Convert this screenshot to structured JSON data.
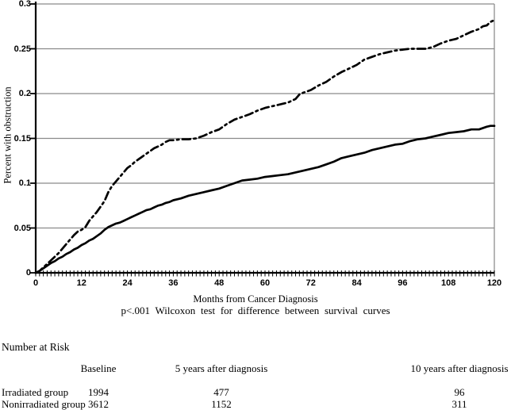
{
  "figure": {
    "ylabel": "Percent with obstruction",
    "xlabel": "Months from Cancer Diagnosis",
    "footnote": "p<.001 Wilcoxon test for difference between survival curves"
  },
  "chart_data": {
    "type": "line",
    "title": "",
    "xlabel": "Months from Cancer Diagnosis",
    "ylabel": "Percent with obstruction",
    "annotation": "p<.001 Wilcoxon test for difference between survival curves",
    "xlim": [
      0,
      120
    ],
    "ylim": [
      0,
      0.3
    ],
    "grid": true,
    "legend": "none",
    "x_ticks": [
      0,
      12,
      24,
      36,
      48,
      60,
      72,
      84,
      96,
      108,
      120
    ],
    "minor_x_tick_every_months": 1,
    "y_ticks": [
      0,
      0.05,
      0.1,
      0.15,
      0.2,
      0.25,
      0.3
    ],
    "y_tick_labels": [
      "0",
      "0.05",
      "0.1",
      "0.15",
      "0.2",
      "0.25",
      "0.3"
    ],
    "series": [
      {
        "name": "Irradiated group",
        "style": "dash-dot",
        "color": "#000000",
        "x": [
          0,
          1,
          2,
          3,
          4,
          5,
          6,
          7,
          8,
          9,
          10,
          11,
          12,
          13,
          14,
          15,
          16,
          17,
          18,
          19,
          20,
          21,
          22,
          23,
          24,
          25,
          26,
          27,
          28,
          29,
          30,
          31,
          32,
          33,
          34,
          35,
          36,
          38,
          40,
          42,
          44,
          46,
          48,
          50,
          52,
          54,
          56,
          58,
          60,
          62,
          64,
          66,
          68,
          69,
          70,
          72,
          74,
          76,
          78,
          80,
          82,
          84,
          86,
          88,
          90,
          92,
          94,
          96,
          98,
          100,
          102,
          104,
          106,
          108,
          110,
          112,
          114,
          116,
          117,
          118,
          119,
          120
        ],
        "y": [
          0,
          0.002,
          0.006,
          0.01,
          0.014,
          0.018,
          0.022,
          0.027,
          0.032,
          0.037,
          0.042,
          0.046,
          0.048,
          0.051,
          0.058,
          0.063,
          0.068,
          0.074,
          0.08,
          0.09,
          0.097,
          0.102,
          0.107,
          0.112,
          0.117,
          0.12,
          0.124,
          0.127,
          0.13,
          0.133,
          0.136,
          0.139,
          0.141,
          0.143,
          0.146,
          0.148,
          0.148,
          0.149,
          0.149,
          0.15,
          0.153,
          0.157,
          0.16,
          0.166,
          0.171,
          0.174,
          0.177,
          0.181,
          0.184,
          0.186,
          0.188,
          0.19,
          0.194,
          0.199,
          0.201,
          0.204,
          0.209,
          0.213,
          0.219,
          0.224,
          0.228,
          0.232,
          0.238,
          0.241,
          0.244,
          0.246,
          0.248,
          0.249,
          0.25,
          0.25,
          0.25,
          0.252,
          0.256,
          0.259,
          0.261,
          0.265,
          0.269,
          0.272,
          0.275,
          0.276,
          0.28,
          0.282
        ]
      },
      {
        "name": "Nonirradiated group",
        "style": "solid",
        "color": "#000000",
        "x": [
          0,
          1,
          2,
          3,
          4,
          5,
          6,
          7,
          8,
          9,
          10,
          11,
          12,
          13,
          14,
          15,
          16,
          17,
          18,
          19,
          20,
          21,
          22,
          23,
          24,
          25,
          26,
          27,
          28,
          29,
          30,
          31,
          32,
          33,
          34,
          35,
          36,
          38,
          40,
          42,
          44,
          46,
          48,
          50,
          52,
          54,
          56,
          58,
          60,
          62,
          64,
          66,
          68,
          70,
          72,
          74,
          76,
          78,
          80,
          82,
          84,
          86,
          88,
          90,
          92,
          94,
          96,
          98,
          100,
          102,
          104,
          106,
          108,
          110,
          112,
          114,
          116,
          118,
          119,
          120
        ],
        "y": [
          0,
          0.002,
          0.005,
          0.008,
          0.011,
          0.013,
          0.016,
          0.018,
          0.021,
          0.023,
          0.026,
          0.028,
          0.031,
          0.033,
          0.036,
          0.038,
          0.041,
          0.044,
          0.048,
          0.051,
          0.053,
          0.055,
          0.056,
          0.058,
          0.06,
          0.062,
          0.064,
          0.066,
          0.068,
          0.07,
          0.071,
          0.073,
          0.075,
          0.076,
          0.078,
          0.079,
          0.081,
          0.083,
          0.086,
          0.088,
          0.09,
          0.092,
          0.094,
          0.097,
          0.1,
          0.103,
          0.104,
          0.105,
          0.107,
          0.108,
          0.109,
          0.11,
          0.112,
          0.114,
          0.116,
          0.118,
          0.121,
          0.124,
          0.128,
          0.13,
          0.132,
          0.134,
          0.137,
          0.139,
          0.141,
          0.143,
          0.144,
          0.147,
          0.149,
          0.15,
          0.152,
          0.154,
          0.156,
          0.157,
          0.158,
          0.16,
          0.16,
          0.163,
          0.164,
          0.164
        ]
      }
    ]
  },
  "risk_table": {
    "title": "Number at Risk",
    "columns": [
      "Baseline",
      "5 years after diagnosis",
      "10 years after diagnosis"
    ],
    "rows": [
      {
        "label": "Irradiated group",
        "values": [
          "1994",
          "477",
          "96"
        ]
      },
      {
        "label": "Nonirradiated group",
        "values": [
          "3612",
          "1152",
          "311"
        ]
      }
    ]
  }
}
